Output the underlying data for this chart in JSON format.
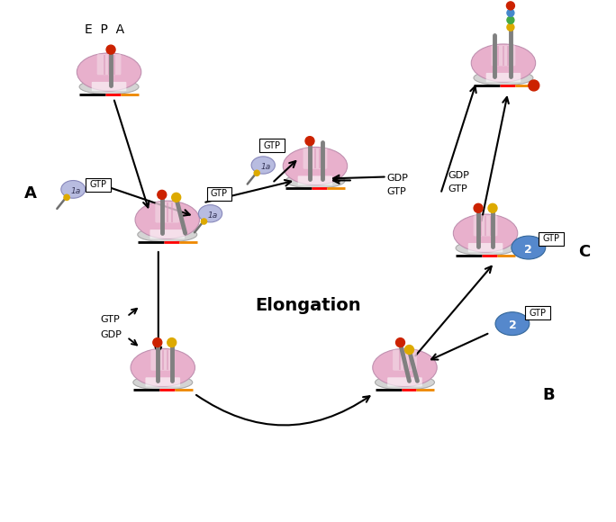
{
  "bg_color": "#ffffff",
  "pink_color": "#e8b0cc",
  "pink_inner_color": "#f0d0e0",
  "pink_stripe_color": "#dda0c0",
  "gray_sub_color": "#d4d4d4",
  "gray_sub_edge": "#aaaaaa",
  "rod_color": "#808080",
  "red_dot_color": "#cc2200",
  "yellow_dot_color": "#ddaa00",
  "blue_dot_color": "#4488cc",
  "green_dot_color": "#44aa44",
  "orange_dot_color": "#ff8800",
  "eF1a_color": "#b8bce0",
  "eF2_color": "#5588cc",
  "label_A": "A",
  "label_B": "B",
  "label_C": "C",
  "label_EPA": "E  P  A",
  "label_elongation": "Elongation",
  "label_GTP": "GTP",
  "label_GDP": "GDP",
  "label_1a": "1a",
  "label_2": "2"
}
